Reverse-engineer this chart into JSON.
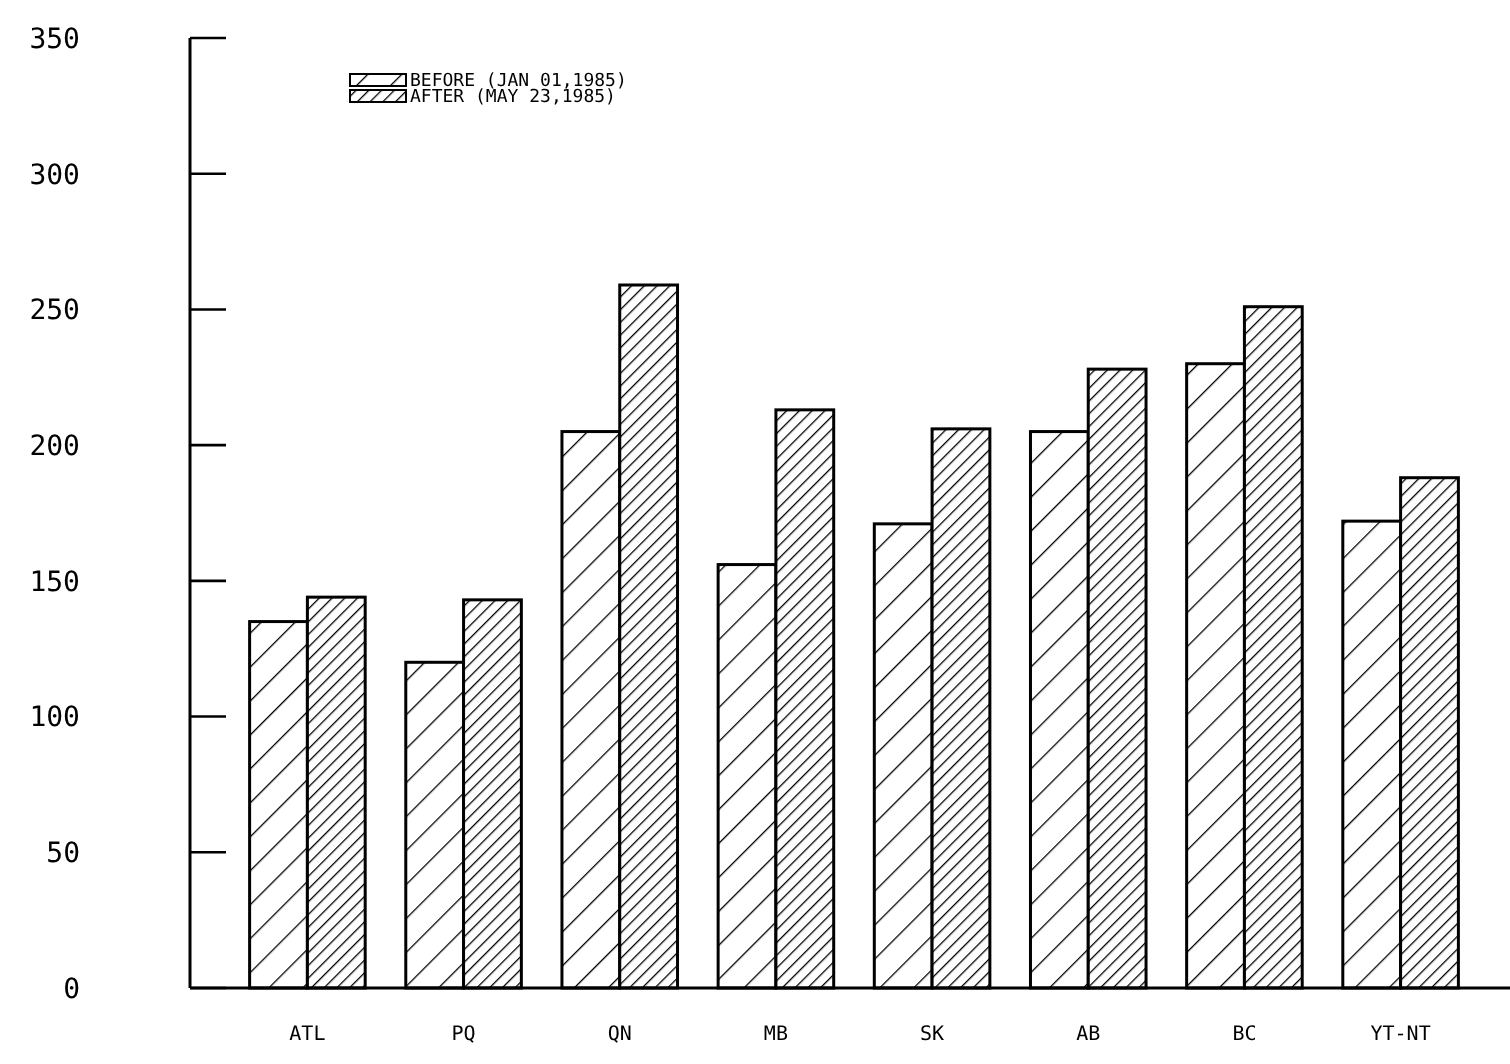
{
  "chart_data": {
    "type": "bar",
    "categories": [
      "ATL",
      "PQ",
      "QN",
      "MB",
      "SK",
      "AB",
      "BC",
      "YT-NT"
    ],
    "series": [
      {
        "name": "BEFORE (JAN 01,1985)",
        "color": "#000000",
        "values": [
          135,
          120,
          205,
          156,
          171,
          205,
          230,
          172
        ]
      },
      {
        "name": "AFTER (MAY 23,1985)",
        "color": "#000000",
        "values": [
          144,
          143,
          259,
          213,
          206,
          228,
          251,
          188
        ]
      }
    ],
    "ylim": [
      0,
      350
    ],
    "yticks": [
      0,
      50,
      100,
      150,
      200,
      250,
      300,
      350
    ],
    "grid": false,
    "legend": "top left"
  }
}
